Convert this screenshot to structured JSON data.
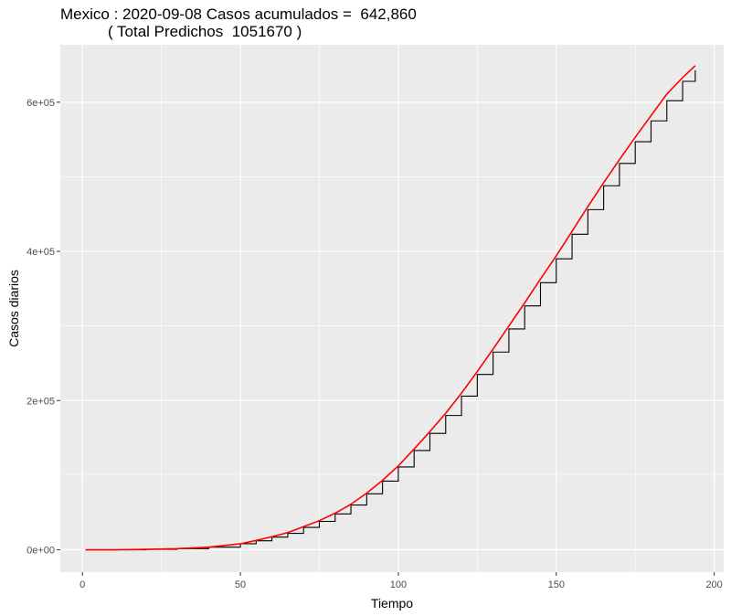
{
  "chart_data": {
    "type": "line",
    "title_line1": "Mexico : 2020-09-08 Casos acumulados =  642,860",
    "title_line2": "           ( Total Predichos  1051670 )",
    "xlabel": "Tiempo",
    "ylabel": "Casos diarios",
    "xlim": [
      -7,
      203
    ],
    "ylim": [
      -30000,
      677000
    ],
    "x_ticks": [
      0,
      50,
      100,
      150,
      200
    ],
    "x_tick_labels": [
      "0",
      "50",
      "100",
      "150",
      "200"
    ],
    "y_ticks": [
      0,
      200000,
      400000,
      600000
    ],
    "y_tick_labels": [
      "0e+00",
      "2e+05",
      "4e+05",
      "6e+05"
    ],
    "panel_background": "#ebebeb",
    "grid": true,
    "series": [
      {
        "style": "step",
        "color": "#000000",
        "x": [
          1,
          10,
          20,
          30,
          40,
          50,
          55,
          60,
          65,
          70,
          75,
          80,
          85,
          90,
          95,
          100,
          105,
          110,
          115,
          120,
          125,
          130,
          135,
          140,
          145,
          150,
          155,
          160,
          165,
          170,
          175,
          180,
          185,
          190,
          194
        ],
        "values": [
          0,
          0,
          500,
          1500,
          3500,
          8000,
          12000,
          17000,
          22000,
          30000,
          38000,
          48000,
          60000,
          75000,
          92000,
          111000,
          133000,
          156000,
          180000,
          206000,
          235000,
          265000,
          296000,
          327000,
          358000,
          390000,
          423000,
          456000,
          488000,
          518000,
          547000,
          575000,
          602000,
          628000,
          642860
        ]
      },
      {
        "style": "line",
        "color": "#ff0000",
        "x": [
          1,
          10,
          20,
          30,
          40,
          50,
          55,
          60,
          65,
          70,
          75,
          80,
          85,
          90,
          95,
          100,
          105,
          110,
          115,
          120,
          125,
          130,
          135,
          140,
          145,
          150,
          155,
          160,
          165,
          170,
          175,
          180,
          185,
          190,
          194
        ],
        "values": [
          0,
          0,
          500,
          1500,
          3500,
          8000,
          12500,
          17500,
          23000,
          31000,
          39000,
          49000,
          61000,
          76000,
          93000,
          112500,
          135000,
          158500,
          183000,
          210000,
          239000,
          269000,
          300000,
          331000,
          363000,
          394000,
          427000,
          460000,
          492000,
          523000,
          553000,
          582000,
          611000,
          633000,
          649000
        ]
      }
    ]
  }
}
